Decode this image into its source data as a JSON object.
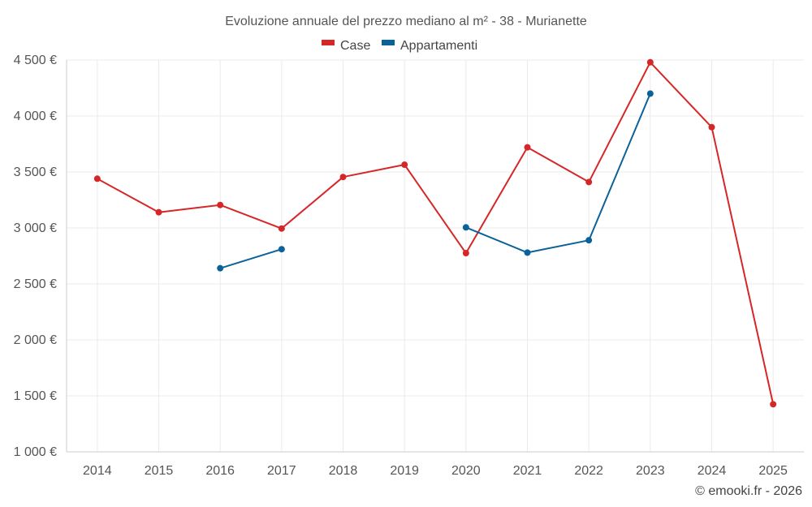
{
  "chart_data": {
    "type": "line",
    "title": "Evoluzione annuale del prezzo mediano al m² - 38 - Murianette",
    "categories": [
      "2014",
      "2015",
      "2016",
      "2017",
      "2018",
      "2019",
      "2020",
      "2021",
      "2022",
      "2023",
      "2024",
      "2025"
    ],
    "series": [
      {
        "name": "Case",
        "color": "#d62728",
        "values": [
          3440,
          3140,
          3205,
          2995,
          3455,
          3565,
          2775,
          3720,
          3410,
          4480,
          3900,
          1425
        ]
      },
      {
        "name": "Appartamenti",
        "color": "#0b6299",
        "values": [
          null,
          null,
          2640,
          2810,
          null,
          null,
          3005,
          2780,
          2890,
          4200,
          null,
          null
        ]
      }
    ],
    "ylim": [
      1000,
      4500
    ],
    "yticks": [
      1000,
      1500,
      2000,
      2500,
      3000,
      3500,
      4000,
      4500
    ],
    "ytick_labels": [
      "1 000 €",
      "1 500 €",
      "2 000 €",
      "2 500 €",
      "3 000 €",
      "3 500 €",
      "4 000 €",
      "4 500 €"
    ],
    "xlabel": "",
    "ylabel": "",
    "grid": true,
    "legend_position": "top-center"
  },
  "credit": "© emooki.fr - 2026"
}
